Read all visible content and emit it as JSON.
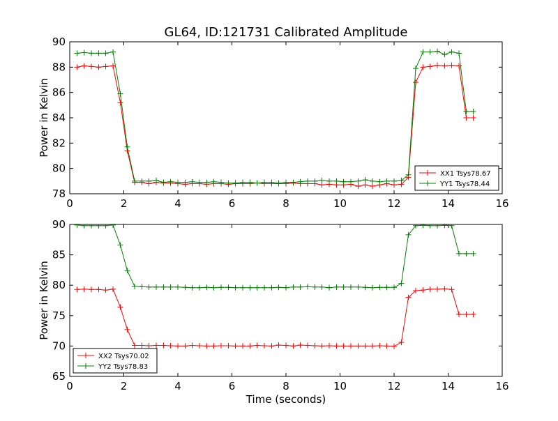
{
  "figure": {
    "title": "GL64, ID:121731 Calibrated Amplitude",
    "xlabel": "Time (seconds)"
  },
  "chart_data": [
    {
      "type": "line",
      "ylabel": "Power in Kelvin",
      "xlim": [
        0,
        16
      ],
      "ylim": [
        78,
        90
      ],
      "xticks": [
        0,
        2,
        4,
        6,
        8,
        10,
        12,
        14,
        16
      ],
      "yticks": [
        78,
        80,
        82,
        84,
        86,
        88,
        90
      ],
      "grid": false,
      "legend_position": "bottom-right",
      "x": [
        0.27,
        0.53,
        0.8,
        1.07,
        1.33,
        1.6,
        1.87,
        2.13,
        2.4,
        2.67,
        2.93,
        3.2,
        3.47,
        3.73,
        4.0,
        4.27,
        4.53,
        4.8,
        5.07,
        5.33,
        5.6,
        5.87,
        6.13,
        6.4,
        6.67,
        6.93,
        7.2,
        7.47,
        7.73,
        8.0,
        8.27,
        8.53,
        8.8,
        9.07,
        9.33,
        9.6,
        9.87,
        10.13,
        10.4,
        10.67,
        10.93,
        11.2,
        11.47,
        11.73,
        12.0,
        12.27,
        12.53,
        12.8,
        13.07,
        13.33,
        13.6,
        13.87,
        14.13,
        14.4,
        14.67,
        14.93
      ],
      "series": [
        {
          "name": "XX1 Tsys78.67",
          "color": "#ff0000",
          "values": [
            88.0,
            88.1,
            88.05,
            88.0,
            88.05,
            88.1,
            85.2,
            81.4,
            78.9,
            78.9,
            78.8,
            78.9,
            78.85,
            78.85,
            78.8,
            78.75,
            78.8,
            78.8,
            78.75,
            78.8,
            78.8,
            78.75,
            78.8,
            78.8,
            78.8,
            78.85,
            78.8,
            78.8,
            78.8,
            78.8,
            78.85,
            78.8,
            78.8,
            78.8,
            78.7,
            78.75,
            78.7,
            78.7,
            78.75,
            78.6,
            78.7,
            78.6,
            78.7,
            78.8,
            78.7,
            78.75,
            79.3,
            86.8,
            88.0,
            88.05,
            88.15,
            88.1,
            88.15,
            88.1,
            84.0,
            84.0
          ]
        },
        {
          "name": "YY1 Tsys78.44",
          "color": "#008000",
          "values": [
            89.1,
            89.15,
            89.1,
            89.1,
            89.1,
            89.2,
            85.9,
            81.7,
            79.0,
            79.0,
            79.0,
            79.05,
            78.9,
            78.95,
            78.9,
            78.9,
            78.95,
            78.9,
            78.9,
            78.95,
            78.9,
            78.85,
            78.85,
            78.9,
            78.9,
            78.85,
            78.9,
            78.9,
            78.85,
            78.9,
            78.9,
            78.95,
            79.0,
            79.0,
            79.05,
            79.0,
            79.0,
            78.95,
            78.95,
            79.0,
            79.1,
            79.0,
            78.95,
            79.0,
            79.0,
            79.05,
            79.5,
            87.9,
            89.2,
            89.2,
            89.25,
            89.0,
            89.2,
            89.1,
            84.5,
            84.5
          ]
        }
      ]
    },
    {
      "type": "line",
      "ylabel": "Power in Kelvin",
      "xlim": [
        0,
        16
      ],
      "ylim": [
        65,
        90
      ],
      "xticks": [
        0,
        2,
        4,
        6,
        8,
        10,
        12,
        14,
        16
      ],
      "yticks": [
        65,
        70,
        75,
        80,
        85,
        90
      ],
      "grid": false,
      "legend_position": "bottom-left",
      "x": [
        0.27,
        0.53,
        0.8,
        1.07,
        1.33,
        1.6,
        1.87,
        2.13,
        2.4,
        2.67,
        2.93,
        3.2,
        3.47,
        3.73,
        4.0,
        4.27,
        4.53,
        4.8,
        5.07,
        5.33,
        5.6,
        5.87,
        6.13,
        6.4,
        6.67,
        6.93,
        7.2,
        7.47,
        7.73,
        8.0,
        8.27,
        8.53,
        8.8,
        9.07,
        9.33,
        9.6,
        9.87,
        10.13,
        10.4,
        10.67,
        10.93,
        11.2,
        11.47,
        11.73,
        12.0,
        12.27,
        12.53,
        12.8,
        13.07,
        13.33,
        13.6,
        13.87,
        14.13,
        14.4,
        14.67,
        14.93
      ],
      "series": [
        {
          "name": "XX2 Tsys70.02",
          "color": "#ff0000",
          "values": [
            79.3,
            79.35,
            79.3,
            79.3,
            79.2,
            79.35,
            76.4,
            72.7,
            70.1,
            70.1,
            70.05,
            70.1,
            70.1,
            70.05,
            70.0,
            70.0,
            70.1,
            70.05,
            70.0,
            70.0,
            70.05,
            70.05,
            70.0,
            70.0,
            70.0,
            70.1,
            70.05,
            70.0,
            70.15,
            70.1,
            70.0,
            70.15,
            70.1,
            70.05,
            70.0,
            70.05,
            70.0,
            70.0,
            70.0,
            70.0,
            70.0,
            70.0,
            70.05,
            70.0,
            69.95,
            70.6,
            78.0,
            79.1,
            79.2,
            79.35,
            79.35,
            79.4,
            79.3,
            75.2,
            75.2,
            75.2
          ]
        },
        {
          "name": "YY2 Tsys78.83",
          "color": "#008000",
          "values": [
            89.9,
            89.8,
            89.8,
            89.8,
            89.8,
            89.9,
            86.6,
            82.4,
            79.8,
            79.75,
            79.7,
            79.7,
            79.7,
            79.7,
            79.7,
            79.65,
            79.6,
            79.6,
            79.65,
            79.6,
            79.65,
            79.65,
            79.6,
            79.6,
            79.6,
            79.6,
            79.6,
            79.6,
            79.65,
            79.6,
            79.7,
            79.7,
            79.75,
            79.7,
            79.7,
            79.6,
            79.7,
            79.7,
            79.7,
            79.7,
            79.65,
            79.6,
            79.65,
            79.65,
            79.65,
            80.3,
            88.3,
            89.8,
            89.85,
            89.8,
            89.8,
            89.85,
            89.8,
            85.2,
            85.2,
            85.2
          ]
        }
      ]
    }
  ]
}
